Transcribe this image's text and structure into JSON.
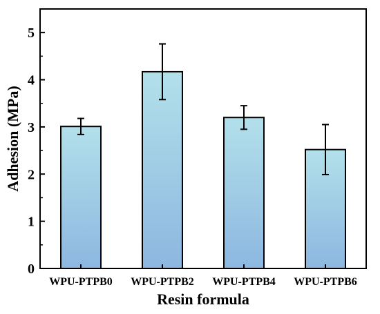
{
  "chart_data": {
    "type": "bar",
    "xlabel": "Resin formula",
    "ylabel": "Adhesion (MPa)",
    "categories": [
      "WPU-PTPB0",
      "WPU-PTPB2",
      "WPU-PTPB4",
      "WPU-PTPB6"
    ],
    "values": [
      3.01,
      4.17,
      3.2,
      2.52
    ],
    "errors": [
      0.17,
      0.59,
      0.25,
      0.53
    ],
    "ylim": [
      0,
      5.5
    ],
    "yticks": [
      "0",
      "1",
      "2",
      "3",
      "4",
      "5"
    ],
    "grid": false,
    "legend": "none",
    "colors": {
      "bar_top": "#b3e0ea",
      "bar_bottom": "#8cb7e0",
      "edge": "#000000"
    }
  }
}
